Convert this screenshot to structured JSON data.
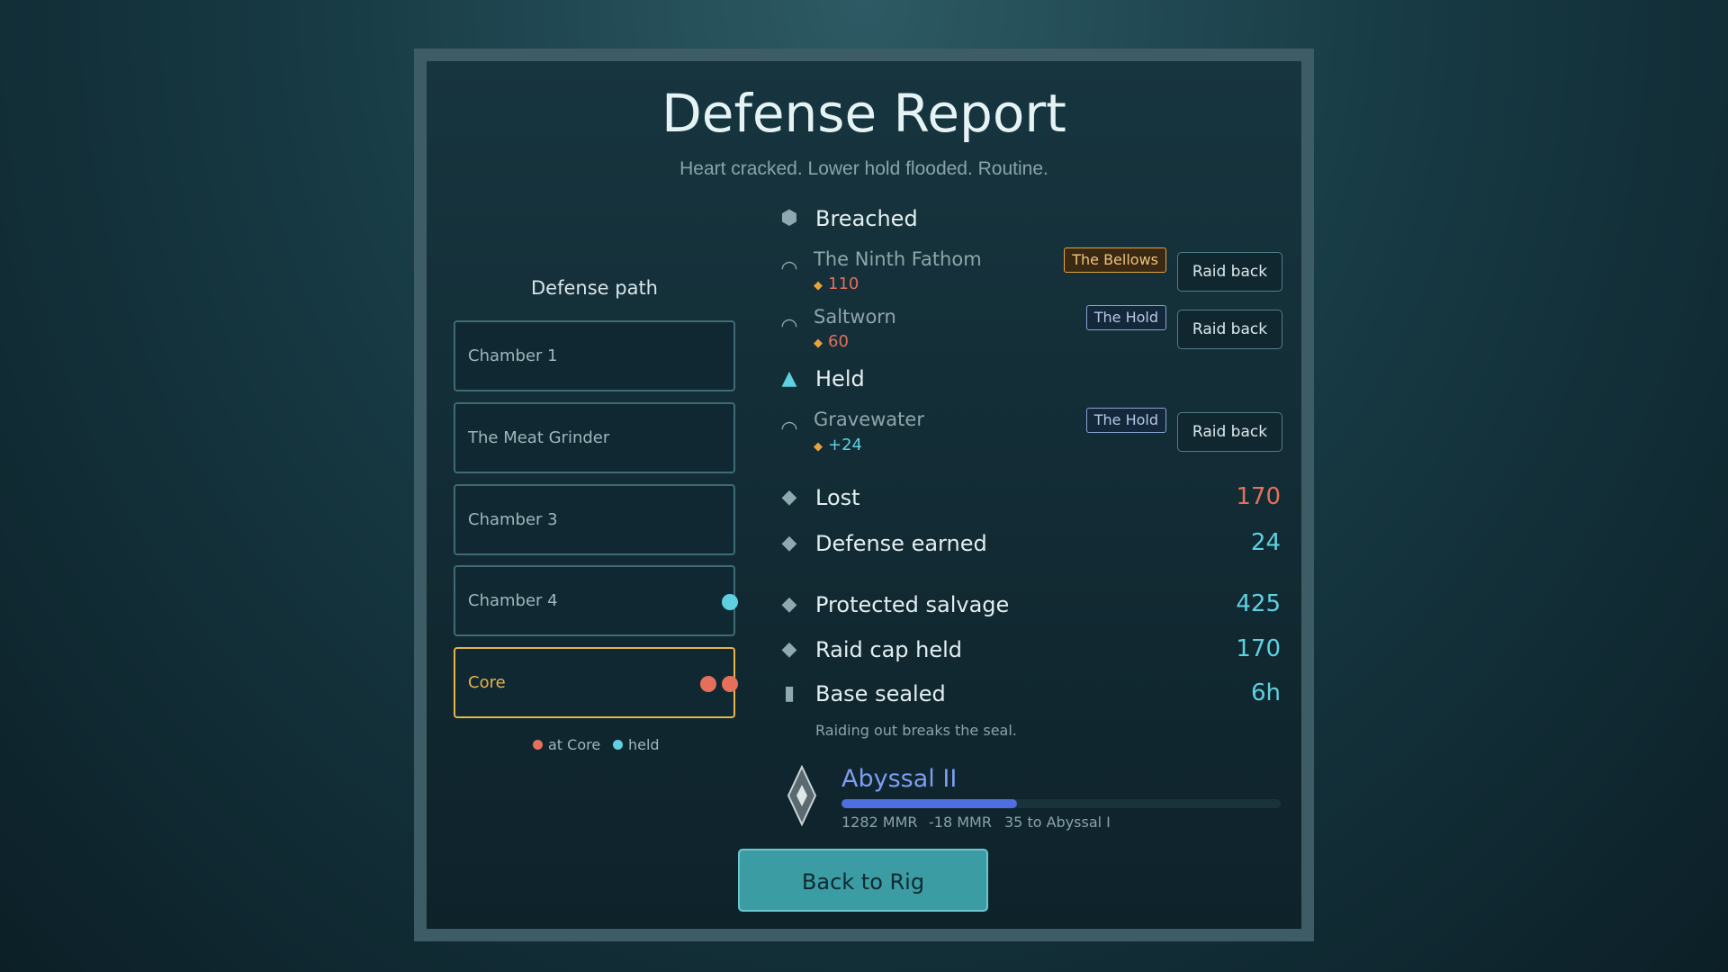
{
  "header": {
    "title": "Defense Report",
    "subtitle": "Heart cracked. Lower hold flooded. Routine."
  },
  "defense_path": {
    "title": "Defense path",
    "chambers": [
      "Chamber 1",
      "The Meat Grinder",
      "Chamber 3",
      "Chamber 4",
      "Core"
    ],
    "legend": [
      "at Core",
      "held"
    ]
  },
  "groups": [
    {
      "title": "Breached",
      "entries": [
        {
          "name": "The Ninth Fathom",
          "amount": "110",
          "tag": "The Bellows",
          "button": "Raid back"
        },
        {
          "name": "Saltworn",
          "amount": "60",
          "tag": "The Hold",
          "button": "Raid back"
        }
      ]
    },
    {
      "title": "Held",
      "entries": [
        {
          "name": "Gravewater",
          "amount": "+24",
          "tag": "The Hold",
          "button": "Raid back"
        }
      ]
    }
  ],
  "stats": [
    {
      "label": "Lost",
      "value": "170"
    },
    {
      "label": "Defense earned",
      "value": "24"
    },
    {
      "label": "Protected salvage",
      "value": "425"
    },
    {
      "label": "Raid cap held",
      "value": "170"
    },
    {
      "label": "Base sealed",
      "value": "6h"
    }
  ],
  "note": "Raiding out breaks the seal.",
  "rank": {
    "name": "Abyssal II",
    "mmr": "1282 MMR",
    "change": "-18 MMR",
    "to_next": "35 to Abyssal I"
  },
  "button": "Back to Rig"
}
